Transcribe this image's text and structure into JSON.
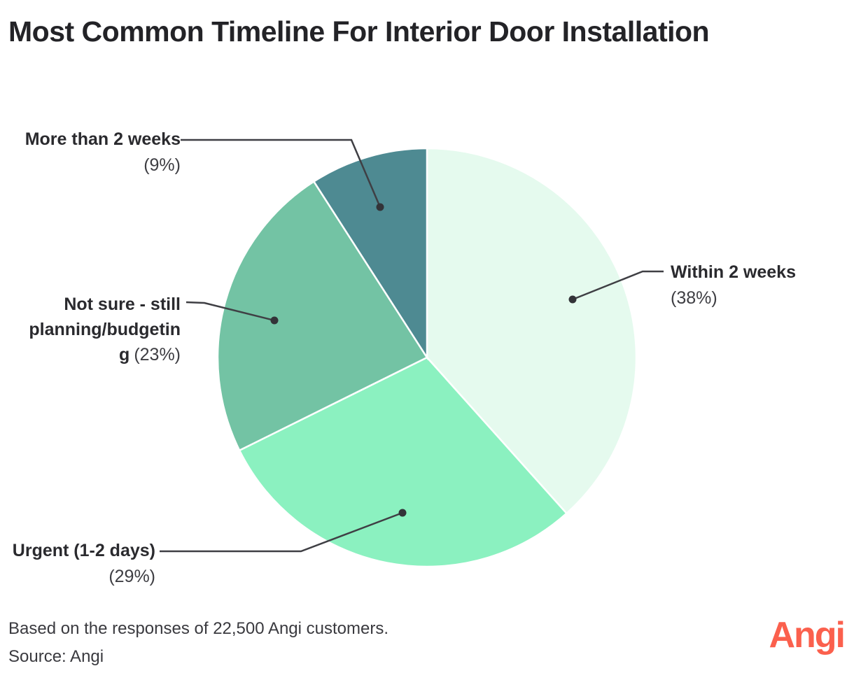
{
  "title": "Most Common Timeline For Interior Door Installation",
  "chart_data": {
    "type": "pie",
    "title": "Most Common Timeline For Interior Door Installation",
    "start_at": "top",
    "direction": "clockwise",
    "slice_gap_color": "#FFFFFF",
    "leader_line_color": "#3F3F44",
    "dot_color": "#333338",
    "slices": [
      {
        "id": "within-2-weeks",
        "label": "Within 2 weeks",
        "pct_label": "(38%)",
        "value": 38,
        "color": "#E5FAEE"
      },
      {
        "id": "urgent-1-2-days",
        "label": "Urgent (1-2 days)",
        "pct_label": "(29%)",
        "value": 29,
        "color": "#8BF1C0"
      },
      {
        "id": "not-sure-still-planning-budgeting",
        "label": "Not sure - still planning/budgeting",
        "pct_label": "(23%)",
        "value": 23,
        "color": "#73C3A4"
      },
      {
        "id": "more-than-2-weeks",
        "label": "More than 2 weeks",
        "pct_label": "(9%)",
        "value": 9,
        "color": "#4E8A92"
      }
    ]
  },
  "labels": {
    "within": {
      "name": "Within 2 weeks",
      "pct": "(38%)"
    },
    "urgent": {
      "name": "Urgent (1-2 days)",
      "pct": "(29%)"
    },
    "notsure": {
      "name": "Not sure - still planning/budgeting",
      "pct": "(23%)",
      "lines": [
        "Not sure - still",
        "planning/budgetin",
        "g"
      ]
    },
    "more": {
      "name": "More than 2 weeks",
      "pct": "(9%)"
    }
  },
  "footer": {
    "note": "Based on the responses of 22,500 Angi customers.",
    "source": "Source: Angi"
  },
  "logo": {
    "text": "Angi",
    "color": "#FB604D"
  }
}
